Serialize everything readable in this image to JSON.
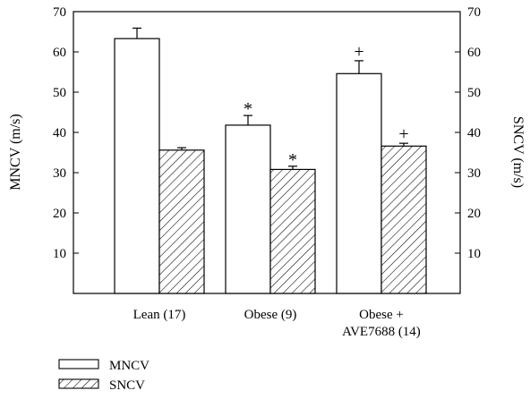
{
  "chart_data": {
    "type": "bar",
    "categories": [
      [
        "Lean (17)"
      ],
      [
        "Obese (9)"
      ],
      [
        "Obese +",
        "AVE7688 (14)"
      ]
    ],
    "series": [
      {
        "name": "MNCV",
        "values": [
          63.3,
          41.8,
          54.6
        ],
        "errors": [
          2.6,
          2.4,
          3.2
        ],
        "marks": [
          "",
          "*",
          "+"
        ],
        "pattern": "open"
      },
      {
        "name": "SNCV",
        "values": [
          35.6,
          30.8,
          36.6
        ],
        "errors": [
          0.6,
          0.8,
          0.7
        ],
        "marks": [
          "",
          "*",
          "+"
        ],
        "pattern": "hatched"
      }
    ],
    "ylabel_left": "MNCV (m/s)",
    "ylabel_right": "SNCV (m/s)",
    "ylim": [
      0,
      70
    ],
    "yticks_left": [
      "10",
      "20",
      "30",
      "40",
      "50",
      "60",
      "70"
    ],
    "yticks_right": [
      "10",
      "20",
      "30",
      "40",
      "50",
      "60",
      "70"
    ],
    "grid": false,
    "legend_position": "bottom-left"
  }
}
